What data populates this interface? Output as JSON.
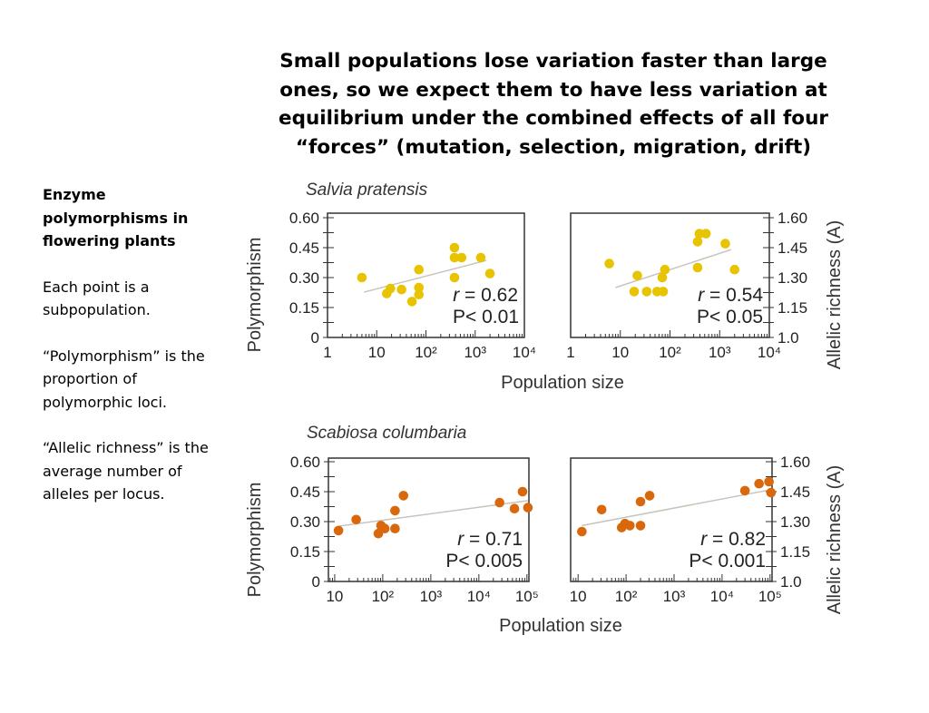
{
  "slide": {
    "title_lines": [
      "Small populations lose variation faster than large",
      "ones, so we expect them to have less variation at",
      "equilibrium under the combined effects of all four",
      "“forces” (mutation, selection, migration, drift)"
    ],
    "sidebar": {
      "heading": "Enzyme polymorphisms in flowering plants",
      "paragraphs": [
        "Each point is a subpopulation.",
        "“Polymorphism” is the proportion of polymorphic loci.",
        "“Allelic richness” is the average number of alleles per locus."
      ]
    }
  },
  "figure": {
    "species": [
      "Salvia pratensis",
      "Scabiosa columbaria"
    ],
    "xlabel": "Population size",
    "ylabel_left": "Polymorphism",
    "ylabel_right": "Allelic richness (A)"
  },
  "chart_data": [
    {
      "type": "scatter",
      "species": "Salvia pratensis",
      "metric": "Polymorphism",
      "x_scale": "log",
      "xlim": [
        1,
        10000
      ],
      "ylim": [
        0,
        0.6
      ],
      "x_ticks": [
        "1",
        "10",
        "10²",
        "10³",
        "10⁴"
      ],
      "x_tick_values": [
        1,
        10,
        100,
        1000,
        10000
      ],
      "y_ticks": [
        "0",
        "0.15",
        "0.30",
        "0.45",
        "0.60"
      ],
      "y_tick_values": [
        0,
        0.15,
        0.3,
        0.45,
        0.6
      ],
      "y_axis_side": "left",
      "color": "#e8c300",
      "points": [
        [
          5,
          0.3
        ],
        [
          16,
          0.22
        ],
        [
          19,
          0.245
        ],
        [
          32,
          0.24
        ],
        [
          52,
          0.18
        ],
        [
          72,
          0.34
        ],
        [
          72,
          0.25
        ],
        [
          72,
          0.215
        ],
        [
          380,
          0.45
        ],
        [
          380,
          0.4
        ],
        [
          530,
          0.4
        ],
        [
          380,
          0.3
        ],
        [
          1300,
          0.4
        ],
        [
          2000,
          0.32
        ]
      ],
      "trendline": {
        "x": [
          5.5,
          1700
        ],
        "y": [
          0.227,
          0.386
        ]
      },
      "r_text": "r = 0.62",
      "p_text": "P< 0.01"
    },
    {
      "type": "scatter",
      "species": "Salvia pratensis",
      "metric": "Allelic richness (A)",
      "x_scale": "log",
      "xlim": [
        1,
        10000
      ],
      "ylim": [
        1.0,
        1.6
      ],
      "x_ticks": [
        "1",
        "10",
        "10²",
        "10³",
        "10⁴"
      ],
      "x_tick_values": [
        1,
        10,
        100,
        1000,
        10000
      ],
      "y_ticks": [
        "1.0",
        "1.15",
        "1.30",
        "1.45",
        "1.60"
      ],
      "y_tick_values": [
        1.0,
        1.15,
        1.3,
        1.45,
        1.6
      ],
      "y_axis_side": "right",
      "color": "#e8c300",
      "points": [
        [
          6,
          1.37
        ],
        [
          22,
          1.31
        ],
        [
          19,
          1.23
        ],
        [
          34,
          1.23
        ],
        [
          55,
          1.23
        ],
        [
          73,
          1.23
        ],
        [
          70,
          1.3
        ],
        [
          79,
          1.34
        ],
        [
          360,
          1.48
        ],
        [
          390,
          1.52
        ],
        [
          530,
          1.52
        ],
        [
          360,
          1.35
        ],
        [
          1300,
          1.47
        ],
        [
          2000,
          1.34
        ]
      ],
      "trendline": {
        "x": [
          8,
          1700
        ],
        "y": [
          1.25,
          1.44
        ]
      },
      "r_text": "r = 0.54",
      "p_text": "P< 0.05"
    },
    {
      "type": "scatter",
      "species": "Scabiosa columbaria",
      "metric": "Polymorphism",
      "x_scale": "log",
      "xlim": [
        7.4,
        110000
      ],
      "ylim": [
        0,
        0.6
      ],
      "x_ticks": [
        "10",
        "10²",
        "10³",
        "10⁴",
        "10⁵"
      ],
      "x_tick_values": [
        10,
        100,
        1000,
        10000,
        100000
      ],
      "y_ticks": [
        "0",
        "0.15",
        "0.30",
        "0.45",
        "0.60"
      ],
      "y_tick_values": [
        0,
        0.15,
        0.3,
        0.45,
        0.6
      ],
      "y_axis_side": "left",
      "color": "#d9680c",
      "points": [
        [
          12,
          0.255
        ],
        [
          28,
          0.31
        ],
        [
          81,
          0.24
        ],
        [
          92,
          0.28
        ],
        [
          110,
          0.265
        ],
        [
          180,
          0.355
        ],
        [
          180,
          0.265
        ],
        [
          270,
          0.43
        ],
        [
          27000,
          0.395
        ],
        [
          55000,
          0.365
        ],
        [
          81000,
          0.45
        ],
        [
          105000,
          0.37
        ]
      ],
      "trendline": {
        "x": [
          12,
          105000
        ],
        "y": [
          0.277,
          0.405
        ]
      },
      "r_text": "r = 0.71",
      "p_text": "P< 0.005"
    },
    {
      "type": "scatter",
      "species": "Scabiosa columbaria",
      "metric": "Allelic richness (A)",
      "x_scale": "log",
      "xlim": [
        7,
        110000
      ],
      "ylim": [
        1.0,
        1.6
      ],
      "x_ticks": [
        "10",
        "10²",
        "10³",
        "10⁴",
        "10⁵"
      ],
      "x_tick_values": [
        10,
        100,
        1000,
        10000,
        100000
      ],
      "y_ticks": [
        "1.0",
        "1.15",
        "1.30",
        "1.45",
        "1.60"
      ],
      "y_tick_values": [
        1.0,
        1.15,
        1.3,
        1.45,
        1.6
      ],
      "y_axis_side": "right",
      "color": "#d9680c",
      "points": [
        [
          12,
          1.25
        ],
        [
          31,
          1.36
        ],
        [
          81,
          1.27
        ],
        [
          95,
          1.29
        ],
        [
          120,
          1.28
        ],
        [
          200,
          1.4
        ],
        [
          200,
          1.28
        ],
        [
          310,
          1.43
        ],
        [
          30000,
          1.455
        ],
        [
          59000,
          1.49
        ],
        [
          95000,
          1.5
        ],
        [
          105000,
          1.445
        ]
      ],
      "trendline": {
        "x": [
          12,
          105000
        ],
        "y": [
          1.28,
          1.46
        ]
      },
      "r_text": "r = 0.82",
      "p_text": "P< 0.001"
    }
  ]
}
